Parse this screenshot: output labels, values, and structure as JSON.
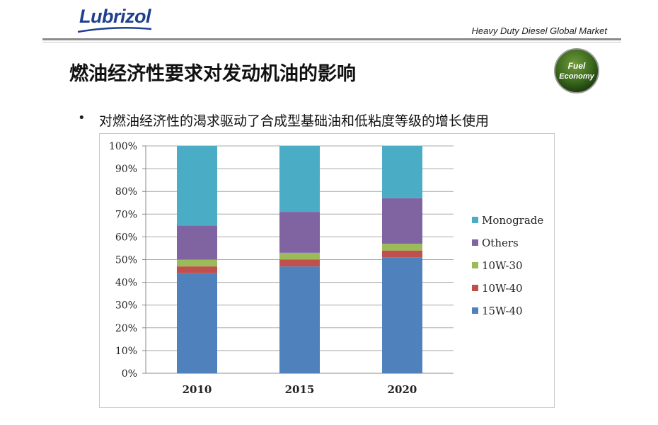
{
  "header": {
    "logo_text": "Lubrizol",
    "market_text": "Heavy Duty Diesel Global Market"
  },
  "badge": {
    "line1": "Fuel",
    "line2": "Economy",
    "color": "#3d6b1f"
  },
  "slide": {
    "title": "燃油经济性要求对发动机油的影响",
    "bullet_marker": "•",
    "bullet_text": "对燃油经济性的渴求驱动了合成型基础油和低粘度等级的增长使用"
  },
  "chart_data": {
    "type": "bar",
    "stacked": true,
    "categories": [
      "2010",
      "2015",
      "2020"
    ],
    "series": [
      {
        "name": "15W-40",
        "values": [
          44,
          47,
          51
        ],
        "color": "#4f81bd"
      },
      {
        "name": "10W-40",
        "values": [
          3,
          3,
          3
        ],
        "color": "#c0504d"
      },
      {
        "name": "10W-30",
        "values": [
          3,
          3,
          3
        ],
        "color": "#9bbb59"
      },
      {
        "name": "Others",
        "values": [
          15,
          18,
          20
        ],
        "color": "#8064a2"
      },
      {
        "name": "Monograde",
        "values": [
          35,
          29,
          23
        ],
        "color": "#4bacc6"
      }
    ],
    "y_ticks": [
      "0%",
      "10%",
      "20%",
      "30%",
      "40%",
      "50%",
      "60%",
      "70%",
      "80%",
      "90%",
      "100%"
    ],
    "ylim": [
      0,
      100
    ],
    "legend_placement": "right",
    "grid": true
  }
}
